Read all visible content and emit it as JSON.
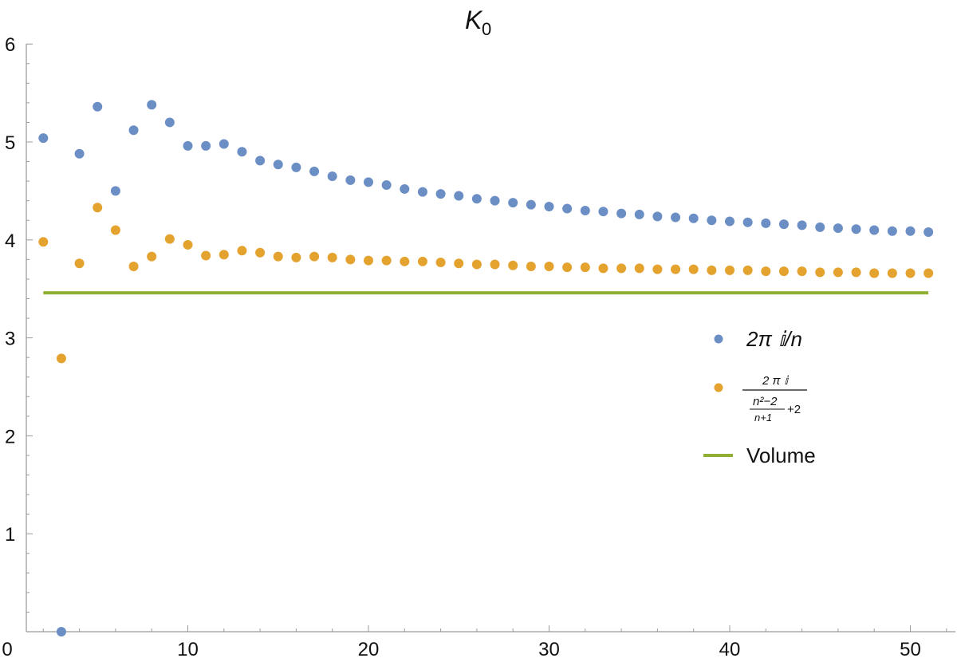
{
  "chart_data": {
    "type": "scatter",
    "title": "K",
    "title_subscript": "0",
    "xlabel": "",
    "ylabel": "",
    "xlim": [
      0,
      52
    ],
    "ylim": [
      0,
      6
    ],
    "x_ticks": [
      "0",
      "10",
      "20",
      "30",
      "40",
      "50"
    ],
    "y_ticks": [
      "1",
      "2",
      "3",
      "4",
      "5",
      "6"
    ],
    "legend_position": "right",
    "series": [
      {
        "name": "2π 𝕚/n",
        "kind": "points",
        "color": "#6b8fc5",
        "x": [
          2,
          3,
          4,
          5,
          6,
          7,
          8,
          9,
          10,
          11,
          12,
          13,
          14,
          15,
          16,
          17,
          18,
          19,
          20,
          21,
          22,
          23,
          24,
          25,
          26,
          27,
          28,
          29,
          30,
          31,
          32,
          33,
          34,
          35,
          36,
          37,
          38,
          39,
          40,
          41,
          42,
          43,
          44,
          45,
          46,
          47,
          48,
          49,
          50,
          51
        ],
        "values": [
          5.04,
          0.0,
          4.88,
          5.36,
          4.5,
          5.12,
          5.38,
          5.2,
          4.96,
          4.96,
          4.98,
          4.9,
          4.81,
          4.77,
          4.74,
          4.7,
          4.65,
          4.61,
          4.59,
          4.56,
          4.52,
          4.49,
          4.47,
          4.45,
          4.42,
          4.4,
          4.38,
          4.36,
          4.34,
          4.32,
          4.3,
          4.29,
          4.27,
          4.26,
          4.24,
          4.23,
          4.22,
          4.2,
          4.19,
          4.18,
          4.17,
          4.16,
          4.15,
          4.13,
          4.12,
          4.11,
          4.1,
          4.09,
          4.09,
          4.08
        ]
      },
      {
        "name": "2 π 𝕚 / ((n²−2)/(n+1) + 2)",
        "legend_numerator": "2 π 𝕚",
        "legend_den_num": "n²−2",
        "legend_den_den": "n+1",
        "legend_den_add": "+2",
        "kind": "points",
        "color": "#e4a22f",
        "x": [
          2,
          3,
          4,
          5,
          6,
          7,
          8,
          9,
          10,
          11,
          12,
          13,
          14,
          15,
          16,
          17,
          18,
          19,
          20,
          21,
          22,
          23,
          24,
          25,
          26,
          27,
          28,
          29,
          30,
          31,
          32,
          33,
          34,
          35,
          36,
          37,
          38,
          39,
          40,
          41,
          42,
          43,
          44,
          45,
          46,
          47,
          48,
          49,
          50,
          51
        ],
        "values": [
          3.98,
          2.79,
          3.76,
          4.33,
          4.1,
          3.73,
          3.83,
          4.01,
          3.95,
          3.84,
          3.85,
          3.89,
          3.87,
          3.83,
          3.82,
          3.83,
          3.82,
          3.8,
          3.79,
          3.79,
          3.78,
          3.78,
          3.77,
          3.76,
          3.75,
          3.75,
          3.74,
          3.73,
          3.73,
          3.72,
          3.72,
          3.71,
          3.71,
          3.71,
          3.7,
          3.7,
          3.7,
          3.69,
          3.69,
          3.69,
          3.68,
          3.68,
          3.68,
          3.67,
          3.67,
          3.67,
          3.66,
          3.66,
          3.66,
          3.66
        ]
      },
      {
        "name": "Volume",
        "kind": "line",
        "color": "#8fb032",
        "x": [
          2,
          51
        ],
        "values": [
          3.46,
          3.46
        ]
      }
    ]
  }
}
